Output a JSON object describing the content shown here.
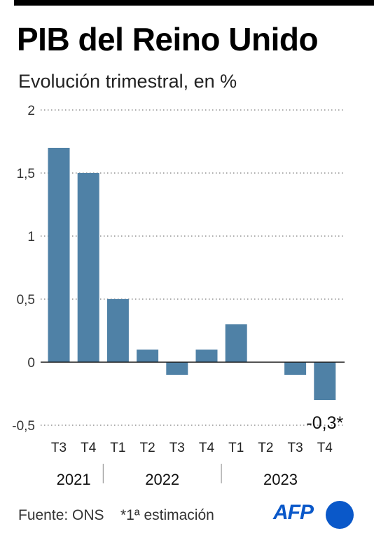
{
  "title": "PIB del Reino Unido",
  "subtitle": "Evolución trimestral, en %",
  "footer": {
    "source": "Fuente: ONS",
    "note": "*1ª estimación",
    "logo_text": "AFP"
  },
  "colors": {
    "bar": "#4f81a6",
    "grid": "#7a7a7a",
    "logo": "#0a58c9"
  },
  "chart_data": {
    "type": "bar",
    "categories": [
      "T3",
      "T4",
      "T1",
      "T2",
      "T3",
      "T4",
      "T1",
      "T2",
      "T3",
      "T4"
    ],
    "values": [
      1.7,
      1.5,
      0.5,
      0.1,
      -0.1,
      0.1,
      0.3,
      0.0,
      -0.1,
      -0.3
    ],
    "years": [
      {
        "label": "2021",
        "count": 2
      },
      {
        "label": "2022",
        "count": 4
      },
      {
        "label": "2023",
        "count": 4
      }
    ],
    "ylim": [
      -0.5,
      2
    ],
    "yticks": [
      {
        "value": 2,
        "label": "2"
      },
      {
        "value": 1.5,
        "label": "1,5"
      },
      {
        "value": 1,
        "label": "1"
      },
      {
        "value": 0.5,
        "label": "0,5"
      },
      {
        "value": 0,
        "label": "0"
      },
      {
        "value": -0.5,
        "label": "-0,5"
      }
    ],
    "grid": true,
    "annotation": {
      "index": 9,
      "text": "-0,3*"
    }
  }
}
